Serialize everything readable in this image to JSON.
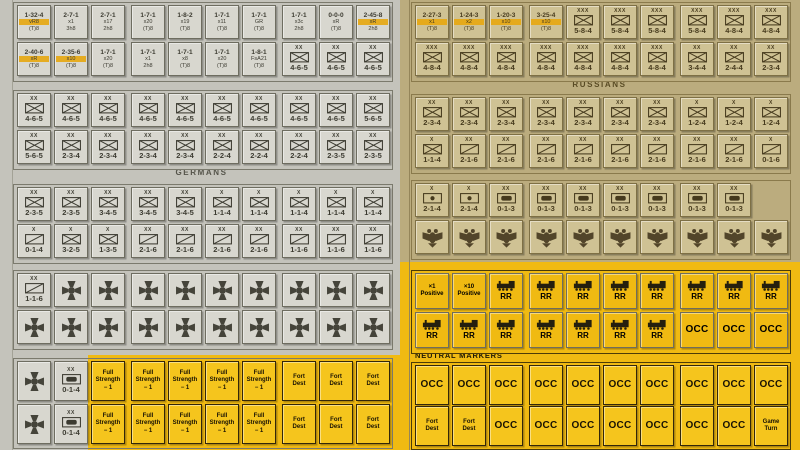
{
  "labels": {
    "germans": "GERMANS",
    "russians": "RUSSIANS",
    "neutral_markers": "NEUTRAL MARKERS"
  },
  "colors": {
    "german_sheet": "#c4c3bb",
    "german_counter": "#d8d7cf",
    "russian_sheet": "#bbac7e",
    "russian_counter": "#cfc294",
    "yellow_sheet": "#f0ba12",
    "yellow_counter": "#f5c51d",
    "highlight_stripe": "#e7a70e"
  },
  "markers": {
    "occ": "OCC",
    "rr": "RR",
    "full_strength": [
      "Full",
      "Strength",
      "− 1"
    ],
    "fort_dest": [
      "Fort",
      "Dest"
    ],
    "game_turn": [
      "Game",
      "Turn"
    ],
    "pos1": [
      "×1",
      "Positive"
    ],
    "pos10": [
      "×10",
      "Positive"
    ]
  },
  "german": {
    "r1": [
      {
        "t": "hq",
        "v": "1-32-4",
        "m": "vR8",
        "b": "(T)8",
        "s": true
      },
      {
        "t": "hq",
        "v": "2-7-1",
        "m": "x1",
        "b": "3h8"
      },
      {
        "t": "hq",
        "v": "2-7-1",
        "m": "x17",
        "b": "2h8"
      },
      {
        "t": "hq",
        "v": "1-7-1",
        "m": "x20",
        "b": "(T)8"
      },
      {
        "t": "hq",
        "v": "1-8-2",
        "m": "x19",
        "b": "(T)8"
      },
      {
        "t": "hq",
        "v": "1-7-1",
        "m": "x11",
        "b": "(T)8"
      },
      {
        "t": "hq",
        "v": "1-7-1",
        "m": "GR",
        "b": "(T)8"
      },
      {
        "t": "hq",
        "v": "1-7-1",
        "m": "x3c",
        "b": "2h8"
      },
      {
        "t": "hq",
        "v": "0-0-0",
        "m": "xR",
        "b": "(T)8"
      },
      {
        "t": "hq",
        "v": "2-45-8",
        "m": "xR",
        "b": "2h8",
        "s": true
      }
    ],
    "r2": [
      {
        "t": "hq",
        "v": "2-40-6",
        "m": "xR",
        "b": "(T)8",
        "s": true
      },
      {
        "t": "hq",
        "v": "2-35-6",
        "m": "x10",
        "b": "(T)8",
        "s": true
      },
      {
        "t": "hq",
        "v": "1-7-1",
        "m": "x20",
        "b": "(T)8"
      },
      {
        "t": "hq",
        "v": "1-7-1",
        "m": "x1",
        "b": "2h8"
      },
      {
        "t": "hq",
        "v": "1-7-1",
        "m": "x8",
        "b": "(T)8"
      },
      {
        "t": "hq",
        "v": "1-7-1",
        "m": "x20",
        "b": "(T)8"
      },
      {
        "t": "hq",
        "v": "1-8-1",
        "m": "FsA21",
        "b": "(T)8"
      },
      {
        "t": "u",
        "v": "4-6-5",
        "sym": "inf",
        "sz": "XX"
      },
      {
        "t": "u",
        "v": "4-6-5",
        "sym": "inf",
        "sz": "XX"
      },
      {
        "t": "u",
        "v": "4-6-5",
        "sym": "inf",
        "sz": "XX"
      }
    ],
    "r3": [
      {
        "t": "u",
        "v": "4-6-5",
        "sym": "inf",
        "sz": "XX"
      },
      {
        "t": "u",
        "v": "4-6-5",
        "sym": "inf",
        "sz": "XX"
      },
      {
        "t": "u",
        "v": "4-6-5",
        "sym": "inf",
        "sz": "XX"
      },
      {
        "t": "u",
        "v": "4-6-5",
        "sym": "inf",
        "sz": "XX"
      },
      {
        "t": "u",
        "v": "4-6-5",
        "sym": "inf",
        "sz": "XX"
      },
      {
        "t": "u",
        "v": "4-6-5",
        "sym": "inf",
        "sz": "XX"
      },
      {
        "t": "u",
        "v": "4-6-5",
        "sym": "inf",
        "sz": "XX"
      },
      {
        "t": "u",
        "v": "4-6-5",
        "sym": "inf",
        "sz": "XX"
      },
      {
        "t": "u",
        "v": "4-6-5",
        "sym": "inf",
        "sz": "XX"
      },
      {
        "t": "u",
        "v": "5-6-5",
        "sym": "inf",
        "sz": "XX"
      }
    ],
    "r4": [
      {
        "t": "u",
        "v": "5-6-5",
        "sym": "inf",
        "sz": "XX"
      },
      {
        "t": "u",
        "v": "2-3-4",
        "sym": "inf",
        "sz": "XX"
      },
      {
        "t": "u",
        "v": "2-3-4",
        "sym": "inf",
        "sz": "XX"
      },
      {
        "t": "u",
        "v": "2-3-4",
        "sym": "inf",
        "sz": "XX"
      },
      {
        "t": "u",
        "v": "2-3-4",
        "sym": "inf",
        "sz": "XX"
      },
      {
        "t": "u",
        "v": "2-2-4",
        "sym": "inf",
        "sz": "XX"
      },
      {
        "t": "u",
        "v": "2-2-4",
        "sym": "inf",
        "sz": "XX"
      },
      {
        "t": "u",
        "v": "2-2-4",
        "sym": "inf",
        "sz": "XX"
      },
      {
        "t": "u",
        "v": "2-3-5",
        "sym": "inf",
        "sz": "XX"
      },
      {
        "t": "u",
        "v": "2-3-5",
        "sym": "inf",
        "sz": "XX"
      }
    ],
    "r5": [
      {
        "t": "u",
        "v": "2-3-5",
        "sym": "inf",
        "sz": "XX"
      },
      {
        "t": "u",
        "v": "2-3-5",
        "sym": "inf",
        "sz": "XX"
      },
      {
        "t": "u",
        "v": "3-4-5",
        "sym": "inf",
        "sz": "XX"
      },
      {
        "t": "u",
        "v": "3-4-5",
        "sym": "inf",
        "sz": "XX"
      },
      {
        "t": "u",
        "v": "3-4-5",
        "sym": "inf",
        "sz": "XX"
      },
      {
        "t": "u",
        "v": "1-1-4",
        "sym": "inf",
        "sz": "X"
      },
      {
        "t": "u",
        "v": "1-1-4",
        "sym": "inf",
        "sz": "X"
      },
      {
        "t": "u",
        "v": "1-1-4",
        "sym": "inf",
        "sz": "X"
      },
      {
        "t": "u",
        "v": "1-1-4",
        "sym": "inf",
        "sz": "X"
      },
      {
        "t": "u",
        "v": "1-1-4",
        "sym": "inf",
        "sz": "X"
      }
    ],
    "r6": [
      {
        "t": "u",
        "v": "0-1-4",
        "sym": "cav",
        "sz": "X"
      },
      {
        "t": "u",
        "v": "3-2-5",
        "sym": "inf",
        "sz": "X"
      },
      {
        "t": "u",
        "v": "1-3-5",
        "sym": "inf",
        "sz": "X"
      },
      {
        "t": "u",
        "v": "2-1-6",
        "sym": "cav",
        "sz": "XX"
      },
      {
        "t": "u",
        "v": "2-1-6",
        "sym": "cav",
        "sz": "XX"
      },
      {
        "t": "u",
        "v": "2-1-6",
        "sym": "cav",
        "sz": "XX"
      },
      {
        "t": "u",
        "v": "2-1-6",
        "sym": "cav",
        "sz": "XX"
      },
      {
        "t": "u",
        "v": "1-1-6",
        "sym": "cav",
        "sz": "XX"
      },
      {
        "t": "u",
        "v": "1-1-6",
        "sym": "cav",
        "sz": "XX"
      },
      {
        "t": "u",
        "v": "1-1-6",
        "sym": "cav",
        "sz": "XX"
      }
    ],
    "r7": [
      {
        "t": "u",
        "v": "1-1-6",
        "sym": "cav",
        "sz": "XX"
      },
      {
        "t": "cross"
      },
      {
        "t": "cross"
      },
      {
        "t": "cross"
      },
      {
        "t": "cross"
      },
      {
        "t": "cross"
      },
      {
        "t": "cross"
      },
      {
        "t": "cross"
      },
      {
        "t": "cross"
      },
      {
        "t": "cross"
      }
    ],
    "r8": [
      {
        "t": "cross"
      },
      {
        "t": "cross"
      },
      {
        "t": "cross"
      },
      {
        "t": "cross"
      },
      {
        "t": "cross"
      },
      {
        "t": "cross"
      },
      {
        "t": "cross"
      },
      {
        "t": "cross"
      },
      {
        "t": "cross"
      },
      {
        "t": "cross"
      }
    ],
    "r9": [
      {
        "t": "cross"
      },
      {
        "t": "u",
        "v": "0-1-4",
        "sym": "sup",
        "sz": "XX"
      },
      {
        "t": "mk",
        "k": "full_strength"
      },
      {
        "t": "mk",
        "k": "full_strength"
      },
      {
        "t": "mk",
        "k": "full_strength"
      },
      {
        "t": "mk",
        "k": "full_strength"
      },
      {
        "t": "mk",
        "k": "full_strength"
      },
      {
        "t": "mk",
        "k": "fort_dest"
      },
      {
        "t": "mk",
        "k": "fort_dest"
      },
      {
        "t": "mk",
        "k": "fort_dest"
      }
    ],
    "r10": [
      {
        "t": "cross"
      },
      {
        "t": "u",
        "v": "0-1-4",
        "sym": "sup",
        "sz": "XX"
      },
      {
        "t": "mk",
        "k": "full_strength"
      },
      {
        "t": "mk",
        "k": "full_strength"
      },
      {
        "t": "mk",
        "k": "full_strength"
      },
      {
        "t": "mk",
        "k": "full_strength"
      },
      {
        "t": "mk",
        "k": "full_strength"
      },
      {
        "t": "mk",
        "k": "fort_dest"
      },
      {
        "t": "mk",
        "k": "fort_dest"
      },
      {
        "t": "mk",
        "k": "fort_dest"
      }
    ]
  },
  "russian": {
    "r1": [
      {
        "t": "hq",
        "v": "2-27-3",
        "m": "x1",
        "b": "(T)8",
        "s": true
      },
      {
        "t": "hq",
        "v": "1-24-3",
        "m": "x2",
        "b": "(T)8",
        "s": true
      },
      {
        "t": "hq",
        "v": "1-20-3",
        "m": "x10",
        "b": "(T)8",
        "s": true
      },
      {
        "t": "hq",
        "v": "3-25-4",
        "m": "x10",
        "b": "(T)8",
        "s": true
      },
      {
        "t": "u",
        "v": "5-8-4",
        "sym": "inf",
        "sz": "XXX"
      },
      {
        "t": "u",
        "v": "5-8-4",
        "sym": "inf",
        "sz": "XXX"
      },
      {
        "t": "u",
        "v": "5-8-4",
        "sym": "inf",
        "sz": "XXX"
      },
      {
        "t": "u",
        "v": "5-8-4",
        "sym": "inf",
        "sz": "XXX"
      },
      {
        "t": "u",
        "v": "4-8-4",
        "sym": "inf",
        "sz": "XXX"
      },
      {
        "t": "u",
        "v": "4-8-4",
        "sym": "inf",
        "sz": "XXX"
      }
    ],
    "r2": [
      {
        "t": "u",
        "v": "4-8-4",
        "sym": "inf",
        "sz": "XXX"
      },
      {
        "t": "u",
        "v": "4-8-4",
        "sym": "inf",
        "sz": "XXX"
      },
      {
        "t": "u",
        "v": "4-8-4",
        "sym": "inf",
        "sz": "XXX"
      },
      {
        "t": "u",
        "v": "4-8-4",
        "sym": "inf",
        "sz": "XXX"
      },
      {
        "t": "u",
        "v": "4-8-4",
        "sym": "inf",
        "sz": "XXX"
      },
      {
        "t": "u",
        "v": "4-8-4",
        "sym": "inf",
        "sz": "XXX"
      },
      {
        "t": "u",
        "v": "4-8-4",
        "sym": "inf",
        "sz": "XXX"
      },
      {
        "t": "u",
        "v": "3-4-4",
        "sym": "inf",
        "sz": "XX"
      },
      {
        "t": "u",
        "v": "2-4-4",
        "sym": "inf",
        "sz": "XX"
      },
      {
        "t": "u",
        "v": "2-3-4",
        "sym": "inf",
        "sz": "XX"
      }
    ],
    "r3": [
      {
        "t": "u",
        "v": "2-3-4",
        "sym": "inf",
        "sz": "XX"
      },
      {
        "t": "u",
        "v": "2-3-4",
        "sym": "inf",
        "sz": "XX"
      },
      {
        "t": "u",
        "v": "2-3-4",
        "sym": "inf",
        "sz": "XX"
      },
      {
        "t": "u",
        "v": "2-3-4",
        "sym": "inf",
        "sz": "XX"
      },
      {
        "t": "u",
        "v": "2-3-4",
        "sym": "inf",
        "sz": "XX"
      },
      {
        "t": "u",
        "v": "2-3-4",
        "sym": "inf",
        "sz": "XX"
      },
      {
        "t": "u",
        "v": "2-3-4",
        "sym": "inf",
        "sz": "XX"
      },
      {
        "t": "u",
        "v": "1-2-4",
        "sym": "inf",
        "sz": "X"
      },
      {
        "t": "u",
        "v": "1-2-4",
        "sym": "inf",
        "sz": "X"
      },
      {
        "t": "u",
        "v": "1-2-4",
        "sym": "inf",
        "sz": "X"
      }
    ],
    "r4": [
      {
        "t": "u",
        "v": "1-1-4",
        "sym": "inf",
        "sz": "X"
      },
      {
        "t": "u",
        "v": "2-1-6",
        "sym": "cav",
        "sz": "XX"
      },
      {
        "t": "u",
        "v": "2-1-6",
        "sym": "cav",
        "sz": "XX"
      },
      {
        "t": "u",
        "v": "2-1-6",
        "sym": "cav",
        "sz": "XX"
      },
      {
        "t": "u",
        "v": "2-1-6",
        "sym": "cav",
        "sz": "XX"
      },
      {
        "t": "u",
        "v": "2-1-6",
        "sym": "cav",
        "sz": "XX"
      },
      {
        "t": "u",
        "v": "2-1-6",
        "sym": "cav",
        "sz": "XX"
      },
      {
        "t": "u",
        "v": "2-1-6",
        "sym": "cav",
        "sz": "XX"
      },
      {
        "t": "u",
        "v": "2-1-6",
        "sym": "cav",
        "sz": "XX"
      },
      {
        "t": "u",
        "v": "0-1-6",
        "sym": "cav",
        "sz": "X"
      }
    ],
    "r5": [
      {
        "t": "u",
        "v": "2-1-4",
        "sym": "art",
        "sz": "X"
      },
      {
        "t": "u",
        "v": "2-1-4",
        "sym": "art",
        "sz": "X"
      },
      {
        "t": "u",
        "v": "0-1-3",
        "sym": "sup",
        "sz": "XX"
      },
      {
        "t": "u",
        "v": "0-1-3",
        "sym": "sup",
        "sz": "XX"
      },
      {
        "t": "u",
        "v": "0-1-3",
        "sym": "sup",
        "sz": "XX"
      },
      {
        "t": "u",
        "v": "0-1-3",
        "sym": "sup",
        "sz": "XX"
      },
      {
        "t": "u",
        "v": "0-1-3",
        "sym": "sup",
        "sz": "XX"
      },
      {
        "t": "u",
        "v": "0-1-3",
        "sym": "sup",
        "sz": "XX"
      },
      {
        "t": "u",
        "v": "0-1-3",
        "sym": "sup",
        "sz": "XX"
      },
      {
        "t": "blank"
      }
    ],
    "r6": [
      {
        "t": "eagle"
      },
      {
        "t": "eagle"
      },
      {
        "t": "eagle"
      },
      {
        "t": "eagle"
      },
      {
        "t": "eagle"
      },
      {
        "t": "eagle"
      },
      {
        "t": "eagle"
      },
      {
        "t": "eagle"
      },
      {
        "t": "eagle"
      },
      {
        "t": "eagle"
      }
    ]
  },
  "neutral": {
    "r1": [
      {
        "t": "mk",
        "k": "pos1"
      },
      {
        "t": "mk",
        "k": "pos10"
      },
      {
        "t": "rr"
      },
      {
        "t": "rr"
      },
      {
        "t": "rr"
      },
      {
        "t": "rr"
      },
      {
        "t": "rr"
      },
      {
        "t": "rr"
      },
      {
        "t": "rr"
      },
      {
        "t": "rr"
      }
    ],
    "r2": [
      {
        "t": "rr"
      },
      {
        "t": "rr"
      },
      {
        "t": "rr"
      },
      {
        "t": "rr"
      },
      {
        "t": "rr"
      },
      {
        "t": "rr"
      },
      {
        "t": "rr"
      },
      {
        "t": "occ"
      },
      {
        "t": "occ"
      },
      {
        "t": "occ"
      }
    ],
    "r3": [
      {
        "t": "occ"
      },
      {
        "t": "occ"
      },
      {
        "t": "occ"
      },
      {
        "t": "occ"
      },
      {
        "t": "occ"
      },
      {
        "t": "occ"
      },
      {
        "t": "occ"
      },
      {
        "t": "occ"
      },
      {
        "t": "occ"
      },
      {
        "t": "occ"
      }
    ],
    "r4": [
      {
        "t": "mk",
        "k": "fort_dest"
      },
      {
        "t": "mk",
        "k": "fort_dest"
      },
      {
        "t": "occ"
      },
      {
        "t": "occ"
      },
      {
        "t": "occ"
      },
      {
        "t": "occ"
      },
      {
        "t": "occ"
      },
      {
        "t": "occ"
      },
      {
        "t": "occ"
      },
      {
        "t": "mk",
        "k": "game_turn"
      }
    ]
  }
}
